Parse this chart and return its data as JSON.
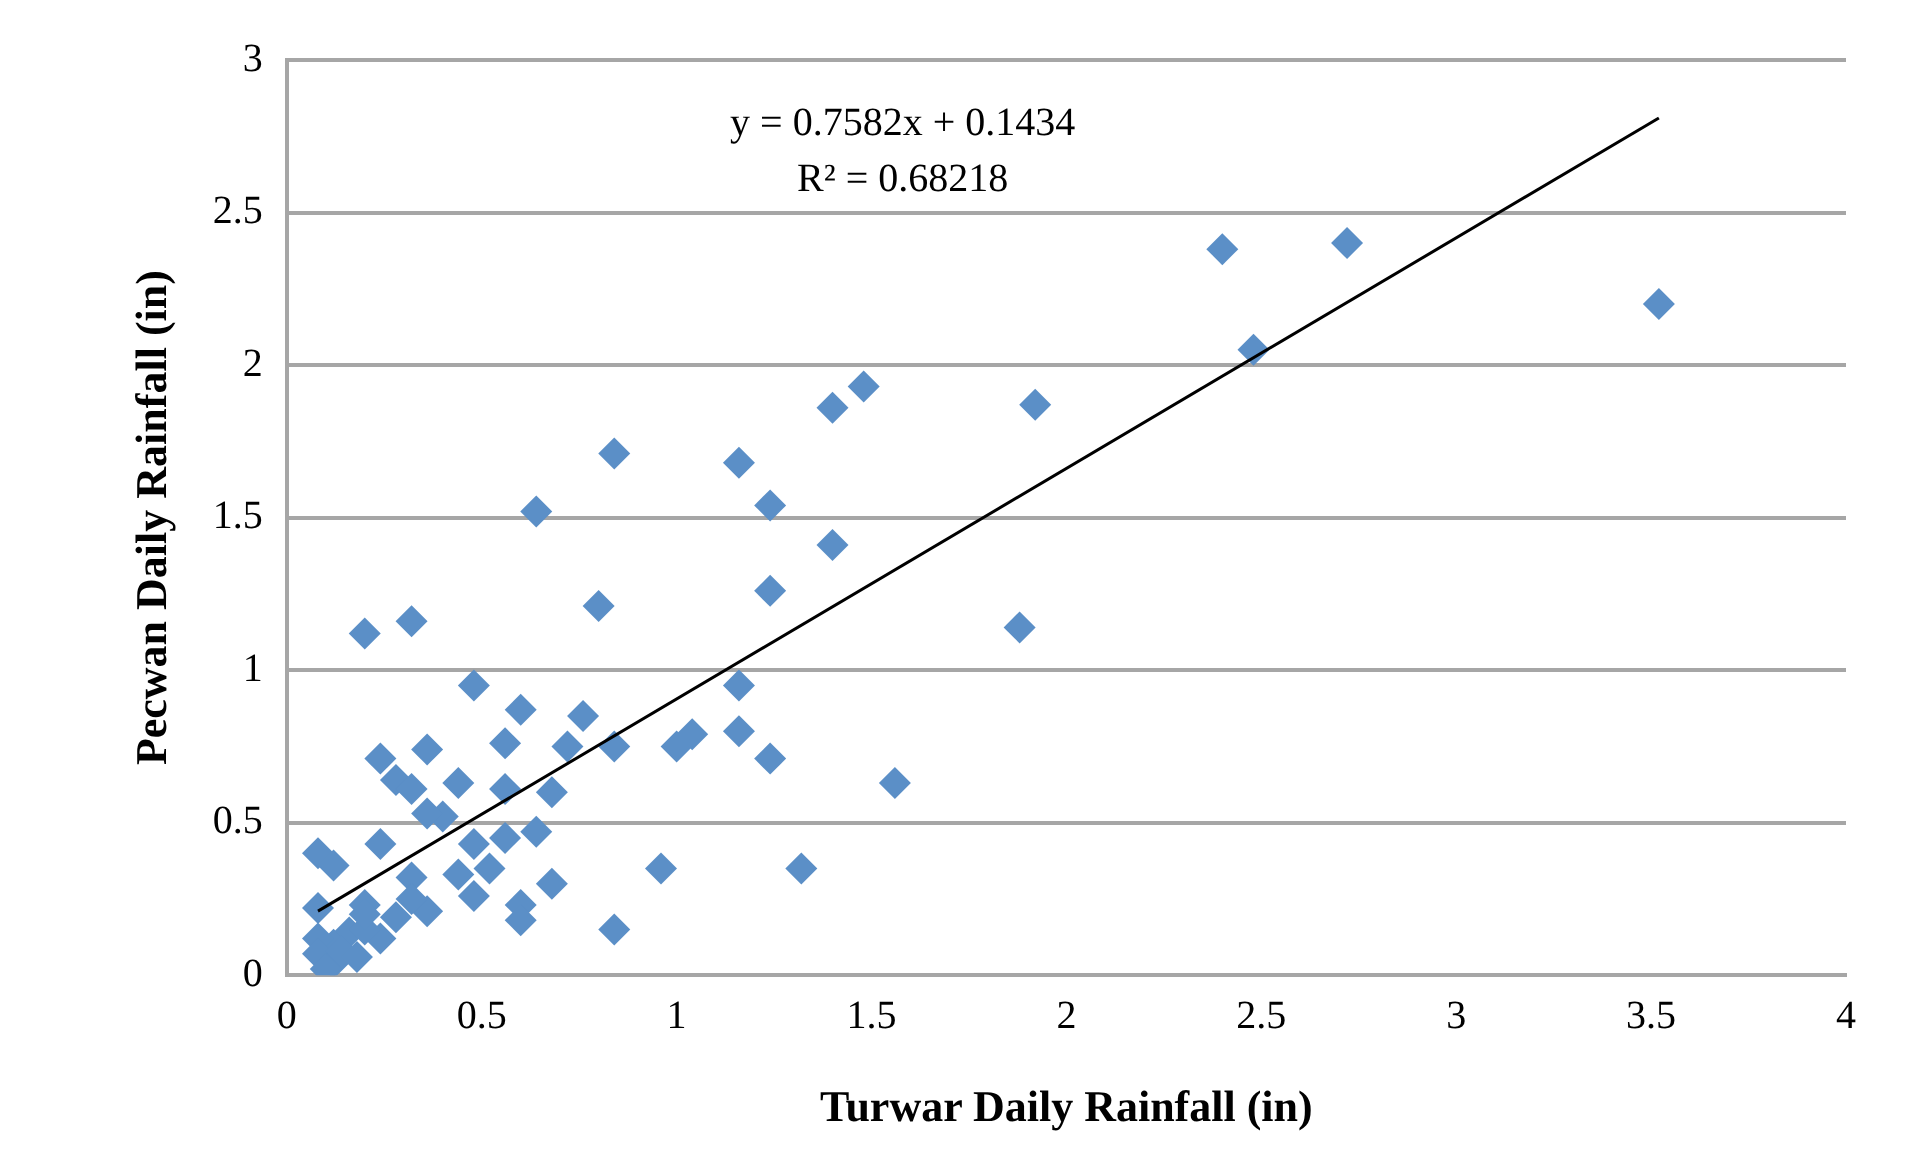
{
  "chart_data": {
    "type": "scatter",
    "xlabel": "Turwar Daily Rainfall (in)",
    "ylabel": "Pecwan Daily Rainfall (in)",
    "annotations": [
      "y = 0.7582x + 0.1434",
      "R² = 0.68218"
    ],
    "xlim": [
      0,
      4
    ],
    "xticks": [
      0,
      0.5,
      1,
      1.5,
      2,
      2.5,
      3,
      3.5,
      4
    ],
    "ylim": [
      0,
      3
    ],
    "yticks": [
      0,
      0.5,
      1,
      1.5,
      2,
      2.5,
      3
    ],
    "grid": "y",
    "marker": "diamond",
    "series": [
      {
        "color": "#5b8fc7",
        "x": [
          2.4,
          2.72,
          3.52,
          2.48,
          1.48,
          1.4,
          1.92,
          0.84,
          1.16,
          1.24,
          0.64,
          1.4,
          1.24,
          0.8,
          0.32,
          0.2,
          1.88,
          1.16,
          0.48,
          0.6,
          0.76,
          1.04,
          1.0,
          1.16,
          0.84,
          0.72,
          1.24,
          0.56,
          0.24,
          0.36,
          1.56,
          0.28,
          0.44,
          0.32,
          0.56,
          0.68,
          0.4,
          0.36,
          0.64,
          0.56,
          0.48,
          0.24,
          0.08,
          0.12,
          0.52,
          0.96,
          1.32,
          0.44,
          0.32,
          0.68,
          0.48,
          0.6,
          0.36,
          0.08,
          0.2,
          0.28,
          0.6,
          0.84,
          0.24,
          0.16,
          0.12,
          0.08,
          0.08,
          0.12,
          0.1,
          0.2,
          0.32,
          0.14,
          0.18,
          0.2
        ],
        "values": [
          2.38,
          2.4,
          2.2,
          2.05,
          1.93,
          1.86,
          1.87,
          1.71,
          1.68,
          1.54,
          1.52,
          1.41,
          1.26,
          1.21,
          1.16,
          1.12,
          1.14,
          0.95,
          0.95,
          0.87,
          0.85,
          0.79,
          0.75,
          0.8,
          0.75,
          0.75,
          0.71,
          0.76,
          0.71,
          0.74,
          0.63,
          0.64,
          0.63,
          0.61,
          0.61,
          0.6,
          0.52,
          0.53,
          0.47,
          0.45,
          0.43,
          0.43,
          0.4,
          0.36,
          0.35,
          0.35,
          0.35,
          0.33,
          0.32,
          0.3,
          0.26,
          0.23,
          0.21,
          0.22,
          0.23,
          0.19,
          0.18,
          0.15,
          0.12,
          0.14,
          0.1,
          0.12,
          0.07,
          0.04,
          0.02,
          0.15,
          0.25,
          0.08,
          0.06,
          0.2
        ]
      },
      {
        "type": "line",
        "color": "#000000",
        "marker": "none",
        "x": [
          0.08,
          3.52
        ],
        "values": [
          0.21,
          2.81
        ]
      }
    ]
  }
}
